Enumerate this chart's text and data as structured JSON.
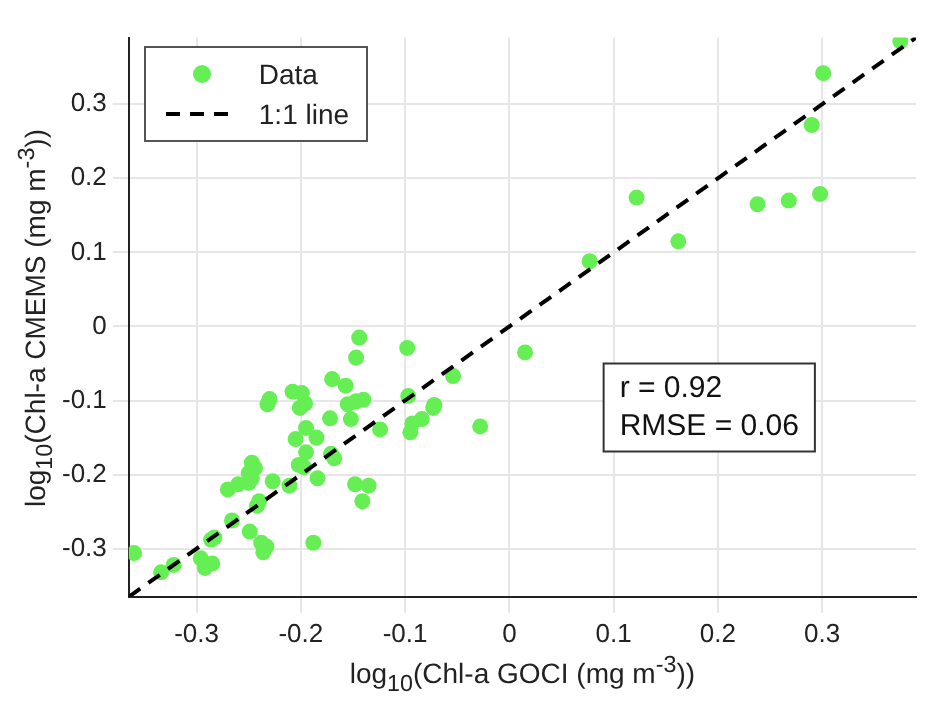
{
  "chart_data": {
    "type": "scatter",
    "xlabel": "log$_{10}$(Chl-a GOCI (mg m$^{-3}$))",
    "ylabel": "log$_{10}$(Chl-a CMEMS (mg m$^{-3}$))",
    "xlim": [
      -0.365,
      0.39
    ],
    "ylim": [
      -0.365,
      0.39
    ],
    "xticks": [
      -0.3,
      -0.2,
      -0.1,
      0,
      0.1,
      0.2,
      0.3
    ],
    "yticks": [
      -0.3,
      -0.2,
      -0.1,
      0,
      0.1,
      0.2,
      0.3
    ],
    "grid": true,
    "legend": "top left",
    "marker": "circle",
    "annotations": [
      "r = 0.92",
      "RMSE = 0.06"
    ],
    "series": [
      {
        "name": "Data",
        "type": "scatter",
        "color": "#66ee55",
        "x": [
          -0.144,
          -0.147,
          -0.098,
          -0.17,
          -0.157,
          -0.054,
          -0.208,
          -0.199,
          -0.23,
          -0.232,
          -0.196,
          -0.201,
          -0.155,
          -0.147,
          -0.14,
          -0.097,
          -0.073,
          -0.072,
          -0.172,
          -0.152,
          -0.084,
          -0.093,
          -0.095,
          -0.028,
          -0.124,
          -0.195,
          -0.205,
          -0.185,
          -0.195,
          -0.171,
          -0.168,
          -0.202,
          -0.197,
          -0.247,
          -0.244,
          -0.25,
          -0.247,
          -0.227,
          -0.211,
          -0.184,
          -0.27,
          -0.26,
          -0.25,
          -0.148,
          -0.135,
          -0.141,
          -0.24,
          -0.242,
          -0.266,
          -0.249,
          -0.283,
          -0.286,
          -0.238,
          -0.233,
          -0.236,
          -0.188,
          -0.296,
          -0.285,
          -0.292,
          -0.322,
          -0.334,
          -0.36,
          0.015,
          0.375,
          0.301,
          0.29,
          0.122,
          0.238,
          0.268,
          0.298,
          0.162,
          0.077
        ],
        "values": [
          -0.015,
          -0.042,
          -0.029,
          -0.071,
          -0.08,
          -0.067,
          -0.088,
          -0.09,
          -0.098,
          -0.105,
          -0.104,
          -0.11,
          -0.105,
          -0.101,
          -0.099,
          -0.094,
          -0.11,
          -0.106,
          -0.124,
          -0.125,
          -0.125,
          -0.131,
          -0.143,
          -0.135,
          -0.139,
          -0.137,
          -0.152,
          -0.15,
          -0.17,
          -0.172,
          -0.178,
          -0.187,
          -0.19,
          -0.184,
          -0.191,
          -0.198,
          -0.205,
          -0.209,
          -0.215,
          -0.205,
          -0.22,
          -0.213,
          -0.211,
          -0.213,
          -0.215,
          -0.236,
          -0.236,
          -0.242,
          -0.262,
          -0.277,
          -0.285,
          -0.288,
          -0.292,
          -0.297,
          -0.305,
          -0.292,
          -0.313,
          -0.32,
          -0.326,
          -0.322,
          -0.332,
          -0.306,
          -0.035,
          0.385,
          0.342,
          0.272,
          0.174,
          0.165,
          0.17,
          0.179,
          0.115,
          0.088
        ]
      },
      {
        "name": "1:1 line",
        "type": "line",
        "color": "#000000",
        "line_style": "dashed",
        "marker": "none",
        "x": [
          -0.365,
          0.39
        ],
        "values": [
          -0.365,
          0.39
        ]
      }
    ]
  }
}
